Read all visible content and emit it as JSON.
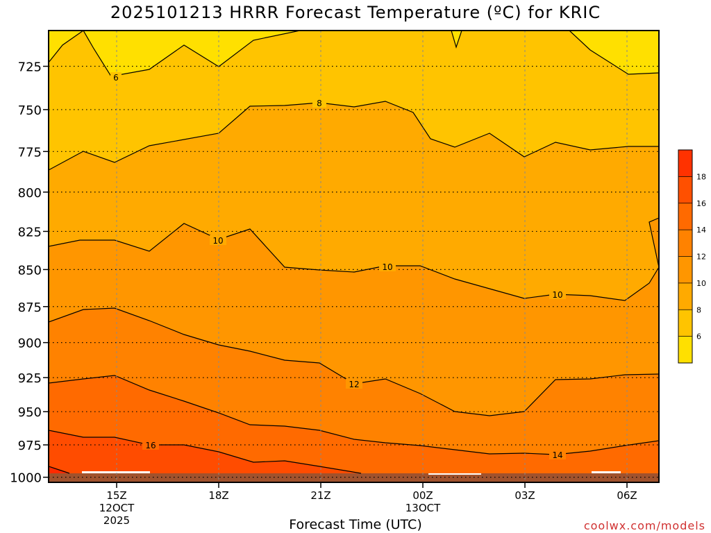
{
  "chart_data": {
    "type": "heatmap",
    "title": "2025101213 HRRR Forecast Temperature (ºC) for KRIC",
    "xlabel": "Forecast Time (UTC)",
    "ylabel": "",
    "y_ticks": [
      725,
      750,
      775,
      800,
      825,
      850,
      875,
      900,
      925,
      950,
      975,
      1000
    ],
    "y_scale": "log",
    "y_range": [
      1004,
      705
    ],
    "x_ticks": [
      {
        "label": "15Z",
        "sub": [
          "12OCT",
          "2025"
        ]
      },
      {
        "label": "18Z",
        "sub": []
      },
      {
        "label": "21Z",
        "sub": []
      },
      {
        "label": "00Z",
        "sub": [
          "13OCT"
        ]
      },
      {
        "label": "03Z",
        "sub": []
      },
      {
        "label": "06Z",
        "sub": []
      }
    ],
    "grid": true,
    "colorbar": {
      "levels": [
        4,
        6,
        8,
        10,
        12,
        14,
        16,
        18,
        20
      ],
      "tick_labels": [
        "6",
        "8",
        "10",
        "12",
        "14",
        "16",
        "18"
      ],
      "colors": [
        "#ffe000",
        "#ffc400",
        "#ffaa00",
        "#ff9600",
        "#ff8200",
        "#ff6a00",
        "#ff5000",
        "#ff3200"
      ]
    },
    "contour_labels": [
      {
        "value": "6"
      },
      {
        "value": "8"
      },
      {
        "value": "10"
      },
      {
        "value": "10"
      },
      {
        "value": "10"
      },
      {
        "value": "12"
      },
      {
        "value": "14"
      },
      {
        "value": "16"
      }
    ],
    "band_colors": {
      "lt6": "#ffe000",
      "b6_8": "#ffc400",
      "b8_10": "#ffaa00",
      "b10_12": "#ff9600",
      "b12_14": "#ff8200",
      "b14_16": "#ff6a00",
      "b16_18": "#ff4c00",
      "gt18": "#ff2a00",
      "ground": "#a0522d"
    }
  },
  "footer": {
    "credit": "coolwx.com/models"
  }
}
